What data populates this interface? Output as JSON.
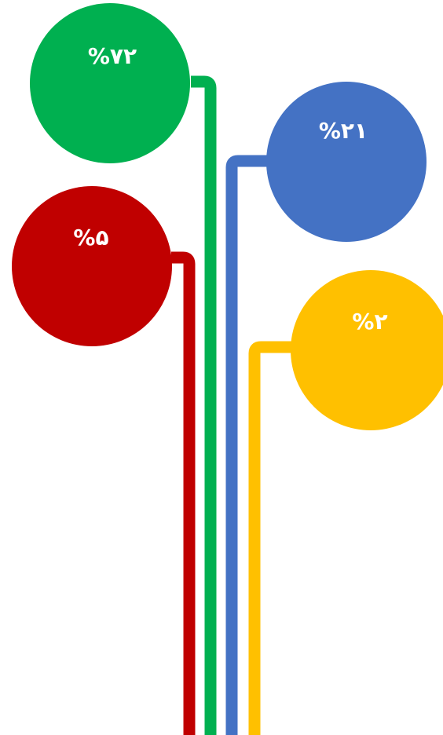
{
  "bubbles": [
    {
      "id": "green",
      "label": "%۷۲",
      "color": "#00B050"
    },
    {
      "id": "blue",
      "label": "%۲۱",
      "color": "#4472C4"
    },
    {
      "id": "red",
      "label": "%۵",
      "color": "#C00000"
    },
    {
      "id": "yellow",
      "label": "%۲",
      "color": "#FFC000"
    }
  ]
}
